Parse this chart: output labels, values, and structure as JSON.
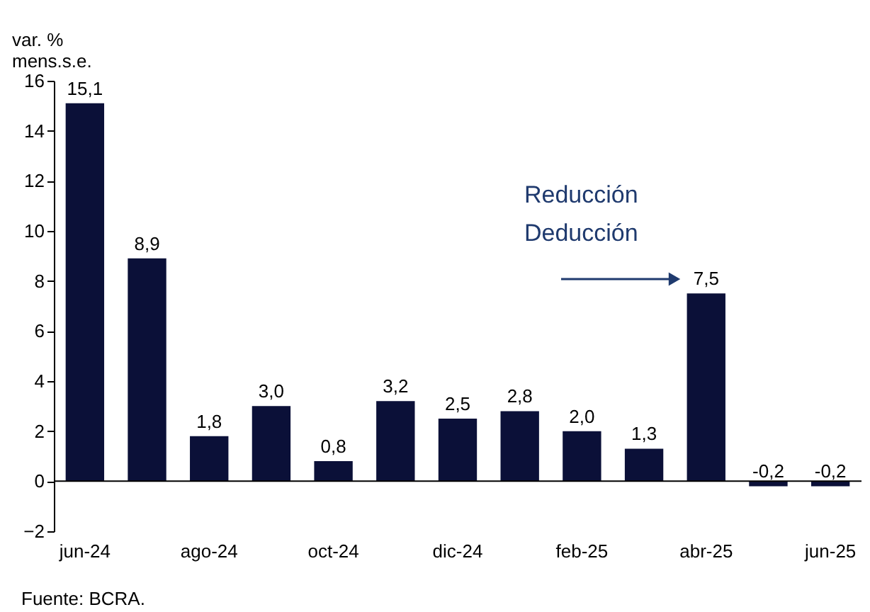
{
  "chart_data": {
    "type": "bar",
    "ylabel": "var. %\nmens.s.e.",
    "categories": [
      "jun-24",
      null,
      "ago-24",
      null,
      "oct-24",
      null,
      "dic-24",
      null,
      "feb-25",
      null,
      "abr-25",
      null,
      "jun-25"
    ],
    "values": [
      15.1,
      8.9,
      1.8,
      3.0,
      0.8,
      3.2,
      2.5,
      2.8,
      2.0,
      1.3,
      7.5,
      -0.2,
      -0.2
    ],
    "value_labels": [
      "15,1",
      "8,9",
      "1,8",
      "3,0",
      "0,8",
      "3,2",
      "2,5",
      "2,8",
      "2,0",
      "1,3",
      "7,5",
      "-0,2",
      "-0,2"
    ],
    "color": "#0b1038",
    "ylim": [
      -2,
      16
    ],
    "yticks": [
      -2,
      0,
      2,
      4,
      6,
      8,
      10,
      12,
      14,
      16
    ],
    "ref_lines": [
      {
        "axis": "y",
        "value": 0,
        "color": "#000000"
      }
    ],
    "annotations": [
      "Reducción\nDeducción",
      "Fuente: BCRA."
    ],
    "grid": false
  }
}
